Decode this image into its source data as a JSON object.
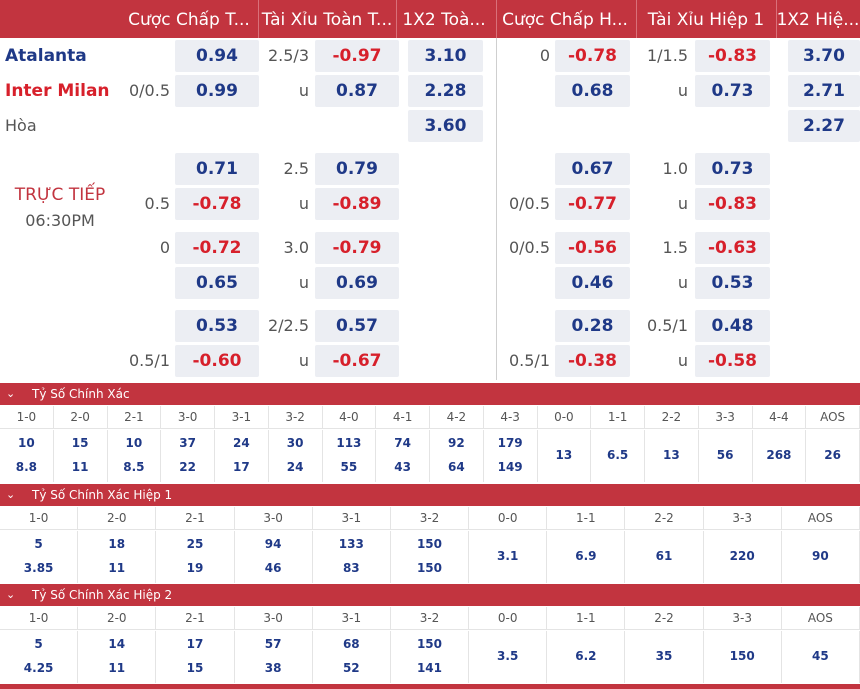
{
  "headers": [
    "Cược Chấp T...",
    "Tài Xỉu Toàn T...",
    "1X2 Toà...",
    "Cược Chấp H...",
    "Tài Xỉu Hiệp 1",
    "1X2 Hiệ..."
  ],
  "match": {
    "home": "Atalanta",
    "away": "Inter Milan",
    "draw": "Hòa",
    "status": "TRỰC TIẾP",
    "time": "06:30PM"
  },
  "colors": {
    "header": "#c2343f",
    "home": "#1f3987",
    "away": "#d7202b",
    "odds_pos": "#1f3987",
    "odds_neg": "#d7202b"
  },
  "main": {
    "hdp_line_home": "",
    "hdp_home": "0.94",
    "hdp_line_away": "0/0.5",
    "hdp_away": "0.99",
    "ou_line": "2.5/3",
    "ou_over": "-0.97",
    "ou_u": "u",
    "ou_under": "0.87",
    "x12_home": "3.10",
    "x12_away": "2.28",
    "x12_draw": "3.60",
    "h1_hdp_line_home": "0",
    "h1_hdp_home": "-0.78",
    "h1_hdp_line_away": "",
    "h1_hdp_away": "0.68",
    "h1_ou_line": "1/1.5",
    "h1_ou_over": "-0.83",
    "h1_ou_u": "u",
    "h1_ou_under": "0.73",
    "h1_x12_home": "3.70",
    "h1_x12_away": "2.71",
    "h1_x12_draw": "2.27"
  },
  "alt": [
    {
      "hdp_l1": "",
      "hdp_o1": "0.71",
      "hdp_l2": "0.5",
      "hdp_o2": "-0.78",
      "ou_l1": "2.5",
      "ou_o1": "0.79",
      "ou_l2": "u",
      "ou_o2": "-0.89",
      "h1hdp_l1": "",
      "h1hdp_o1": "0.67",
      "h1hdp_l2": "0/0.5",
      "h1hdp_o2": "-0.77",
      "h1ou_l1": "1.0",
      "h1ou_o1": "0.73",
      "h1ou_l2": "u",
      "h1ou_o2": "-0.83"
    },
    {
      "hdp_l1": "0",
      "hdp_o1": "-0.72",
      "hdp_l2": "",
      "hdp_o2": "0.65",
      "ou_l1": "3.0",
      "ou_o1": "-0.79",
      "ou_l2": "u",
      "ou_o2": "0.69",
      "h1hdp_l1": "0/0.5",
      "h1hdp_o1": "-0.56",
      "h1hdp_l2": "",
      "h1hdp_o2": "0.46",
      "h1ou_l1": "1.5",
      "h1ou_o1": "-0.63",
      "h1ou_l2": "u",
      "h1ou_o2": "0.53"
    },
    {
      "hdp_l1": "",
      "hdp_o1": "0.53",
      "hdp_l2": "0.5/1",
      "hdp_o2": "-0.60",
      "ou_l1": "2/2.5",
      "ou_o1": "0.57",
      "ou_l2": "u",
      "ou_o2": "-0.67",
      "h1hdp_l1": "",
      "h1hdp_o1": "0.28",
      "h1hdp_l2": "0.5/1",
      "h1hdp_o2": "-0.38",
      "h1ou_l1": "0.5/1",
      "h1ou_o1": "0.48",
      "h1ou_l2": "u",
      "h1ou_o2": "-0.58"
    }
  ],
  "cs": {
    "title": "Tỷ Số Chính Xác",
    "cols": [
      "1-0",
      "2-0",
      "2-1",
      "3-0",
      "3-1",
      "3-2",
      "4-0",
      "4-1",
      "4-2",
      "4-3",
      "0-0",
      "1-1",
      "2-2",
      "3-3",
      "4-4",
      "AOS"
    ],
    "top": [
      "10",
      "15",
      "10",
      "37",
      "24",
      "30",
      "113",
      "74",
      "92",
      "179",
      "13",
      "6.5",
      "13",
      "56",
      "268",
      "26"
    ],
    "bottom": [
      "8.8",
      "11",
      "8.5",
      "22",
      "17",
      "24",
      "55",
      "43",
      "64",
      "149",
      "",
      "",
      "",
      "",
      "",
      ""
    ]
  },
  "cs1": {
    "title": "Tỷ Số Chính Xác Hiệp 1",
    "cols": [
      "1-0",
      "2-0",
      "2-1",
      "3-0",
      "3-1",
      "3-2",
      "0-0",
      "1-1",
      "2-2",
      "3-3",
      "AOS"
    ],
    "top": [
      "5",
      "18",
      "25",
      "94",
      "133",
      "150",
      "3.1",
      "6.9",
      "61",
      "220",
      "90"
    ],
    "bottom": [
      "3.85",
      "11",
      "19",
      "46",
      "83",
      "150",
      "",
      "",
      "",
      "",
      ""
    ]
  },
  "cs2": {
    "title": "Tỷ Số Chính Xác Hiệp 2",
    "cols": [
      "1-0",
      "2-0",
      "2-1",
      "3-0",
      "3-1",
      "3-2",
      "0-0",
      "1-1",
      "2-2",
      "3-3",
      "AOS"
    ],
    "top": [
      "5",
      "14",
      "17",
      "57",
      "68",
      "150",
      "3.5",
      "6.2",
      "35",
      "150",
      "45"
    ],
    "bottom": [
      "4.25",
      "11",
      "15",
      "38",
      "52",
      "141",
      "",
      "",
      "",
      "",
      ""
    ]
  }
}
